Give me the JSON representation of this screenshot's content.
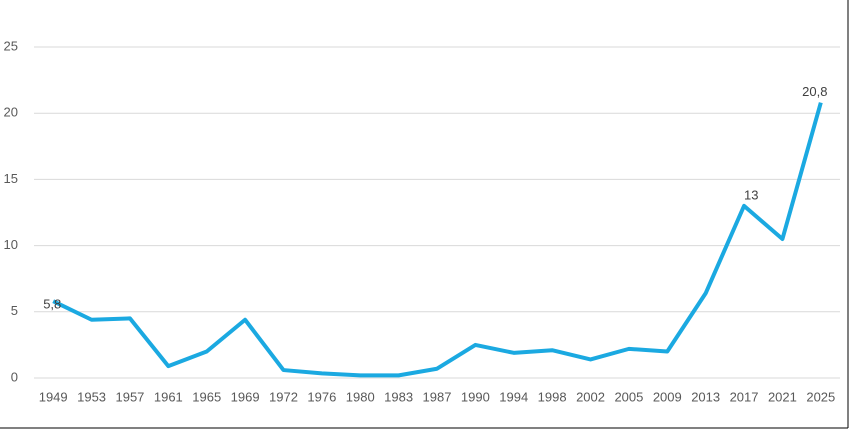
{
  "chart_data": {
    "type": "line",
    "categories": [
      "1949",
      "1953",
      "1957",
      "1961",
      "1965",
      "1969",
      "1972",
      "1976",
      "1980",
      "1983",
      "1987",
      "1990",
      "1994",
      "1998",
      "2002",
      "2005",
      "2009",
      "2013",
      "2017",
      "2021",
      "2025"
    ],
    "values": [
      5.8,
      4.4,
      4.5,
      0.9,
      2.0,
      4.4,
      0.6,
      0.35,
      0.2,
      0.2,
      0.7,
      2.5,
      1.9,
      2.1,
      1.4,
      2.2,
      2.0,
      6.4,
      13,
      10.5,
      20.8
    ],
    "value_labels": [
      "5,8",
      null,
      null,
      null,
      null,
      null,
      null,
      null,
      null,
      null,
      null,
      null,
      null,
      null,
      null,
      null,
      null,
      null,
      "13",
      null,
      "20,8"
    ],
    "color": "#1ba9e1",
    "ylim": [
      0,
      25
    ],
    "yticks": [
      0,
      5,
      10,
      15,
      20,
      25
    ],
    "grid": true
  }
}
